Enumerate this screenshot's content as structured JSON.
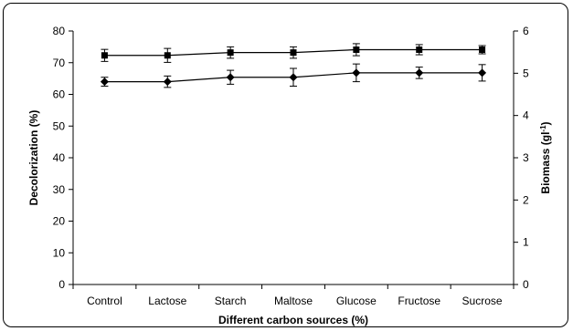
{
  "chart_data": {
    "type": "line",
    "xlabel": "Different carbon sources (%)",
    "ylabel_left": "Decolorization (%)",
    "ylabel_right_base": "Biomass (gl",
    "ylabel_right_sup": "-1",
    "ylabel_right_end": ")",
    "categories": [
      "Control",
      "Lactose",
      "Starch",
      "Maltose",
      "Glucose",
      "Fructose",
      "Sucrose"
    ],
    "ylim_left": [
      0,
      80
    ],
    "ylim_right": [
      0,
      6
    ],
    "yticks_left": [
      0,
      10,
      20,
      30,
      40,
      50,
      60,
      70,
      80
    ],
    "yticks_right": [
      0,
      1,
      2,
      3,
      4,
      5,
      6
    ],
    "grid": false,
    "series": [
      {
        "marker": "square",
        "axis": "left",
        "values": [
          72.3,
          72.3,
          73.2,
          73.2,
          74.1,
          74.1,
          74.1
        ],
        "errors": [
          1.9,
          2.2,
          1.8,
          1.8,
          1.9,
          1.6,
          1.3
        ]
      },
      {
        "marker": "diamond",
        "axis": "left",
        "values": [
          64.0,
          64.0,
          65.4,
          65.4,
          66.8,
          66.8,
          66.8
        ],
        "errors": [
          1.4,
          1.8,
          2.2,
          2.8,
          2.8,
          1.8,
          2.6
        ]
      }
    ]
  }
}
